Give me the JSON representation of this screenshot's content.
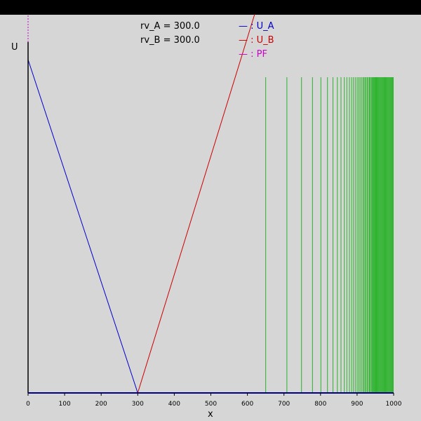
{
  "params": [
    "rv_A = 300.0",
    "rv_B = 300.0"
  ],
  "legend": [
    {
      "label": "— : U_A",
      "color": "#0000cc"
    },
    {
      "label": "— : U_B",
      "color": "#cc0000"
    },
    {
      "label": "— : PF",
      "color": "#cc00cc"
    }
  ],
  "colors": {
    "background": "#d6d6d6",
    "topbar": "#000000",
    "green": "#00aa00"
  },
  "chart_data": {
    "type": "line",
    "xlabel": "x",
    "ylabel": "U",
    "xlim": [
      0,
      1000
    ],
    "ylim": [
      0,
      1
    ],
    "xticks": [
      0,
      100,
      200,
      300,
      400,
      500,
      600,
      700,
      800,
      900,
      1000
    ],
    "series": [
      {
        "name": "U_A",
        "color": "#0000cc",
        "x": [
          0,
          300,
          1000
        ],
        "y": [
          0.95,
          0,
          0
        ]
      },
      {
        "name": "U_B",
        "color": "#cc0000",
        "x": [
          0,
          300,
          620
        ],
        "y": [
          0,
          0,
          1.1
        ]
      },
      {
        "name": "PF",
        "color": "#cc00cc",
        "x": [
          0,
          0
        ],
        "y": [
          0,
          1.1
        ]
      }
    ],
    "green_lines": {
      "x": [
        650,
        708,
        748,
        778,
        801,
        819,
        834,
        846,
        856,
        865,
        872,
        879,
        885,
        890,
        895,
        900,
        904,
        908,
        912,
        916,
        919,
        922,
        925,
        928,
        931,
        934,
        936,
        939,
        941,
        943,
        945,
        947,
        949,
        951,
        953,
        955,
        957,
        959,
        961,
        963,
        965,
        967,
        969,
        971,
        973,
        975,
        977,
        979,
        981,
        983,
        985,
        987,
        989,
        991,
        993,
        995,
        997,
        999
      ],
      "y_top": 0.9,
      "color": "#00aa00"
    }
  }
}
